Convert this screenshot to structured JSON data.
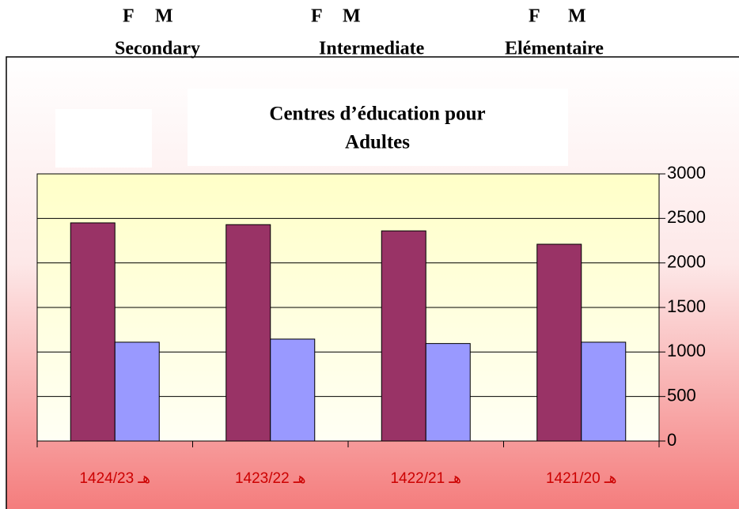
{
  "header": [
    {
      "labels": [
        "F",
        "M"
      ],
      "group": "Secondary"
    },
    {
      "labels": [
        "F",
        "M"
      ],
      "group": "Intermediate"
    },
    {
      "labels": [
        "F",
        "M"
      ],
      "group": "Elémentaire"
    }
  ],
  "chart_data": {
    "type": "bar",
    "title": [
      "Centres d’éducation pour",
      "Adultes"
    ],
    "categories": [
      "هـ 1424/23",
      "هـ 1423/22",
      "هـ 1422/21",
      "هـ 1421/20"
    ],
    "series": [
      {
        "color": "#993366",
        "values": [
          2450,
          2430,
          2360,
          2210
        ]
      },
      {
        "color": "#9999ff",
        "values": [
          1110,
          1145,
          1095,
          1110
        ]
      }
    ],
    "ylim": [
      0,
      3000
    ],
    "yticks": [
      0,
      500,
      1000,
      1500,
      2000,
      2500,
      3000
    ],
    "grid": true,
    "yaxis_side": "right"
  }
}
